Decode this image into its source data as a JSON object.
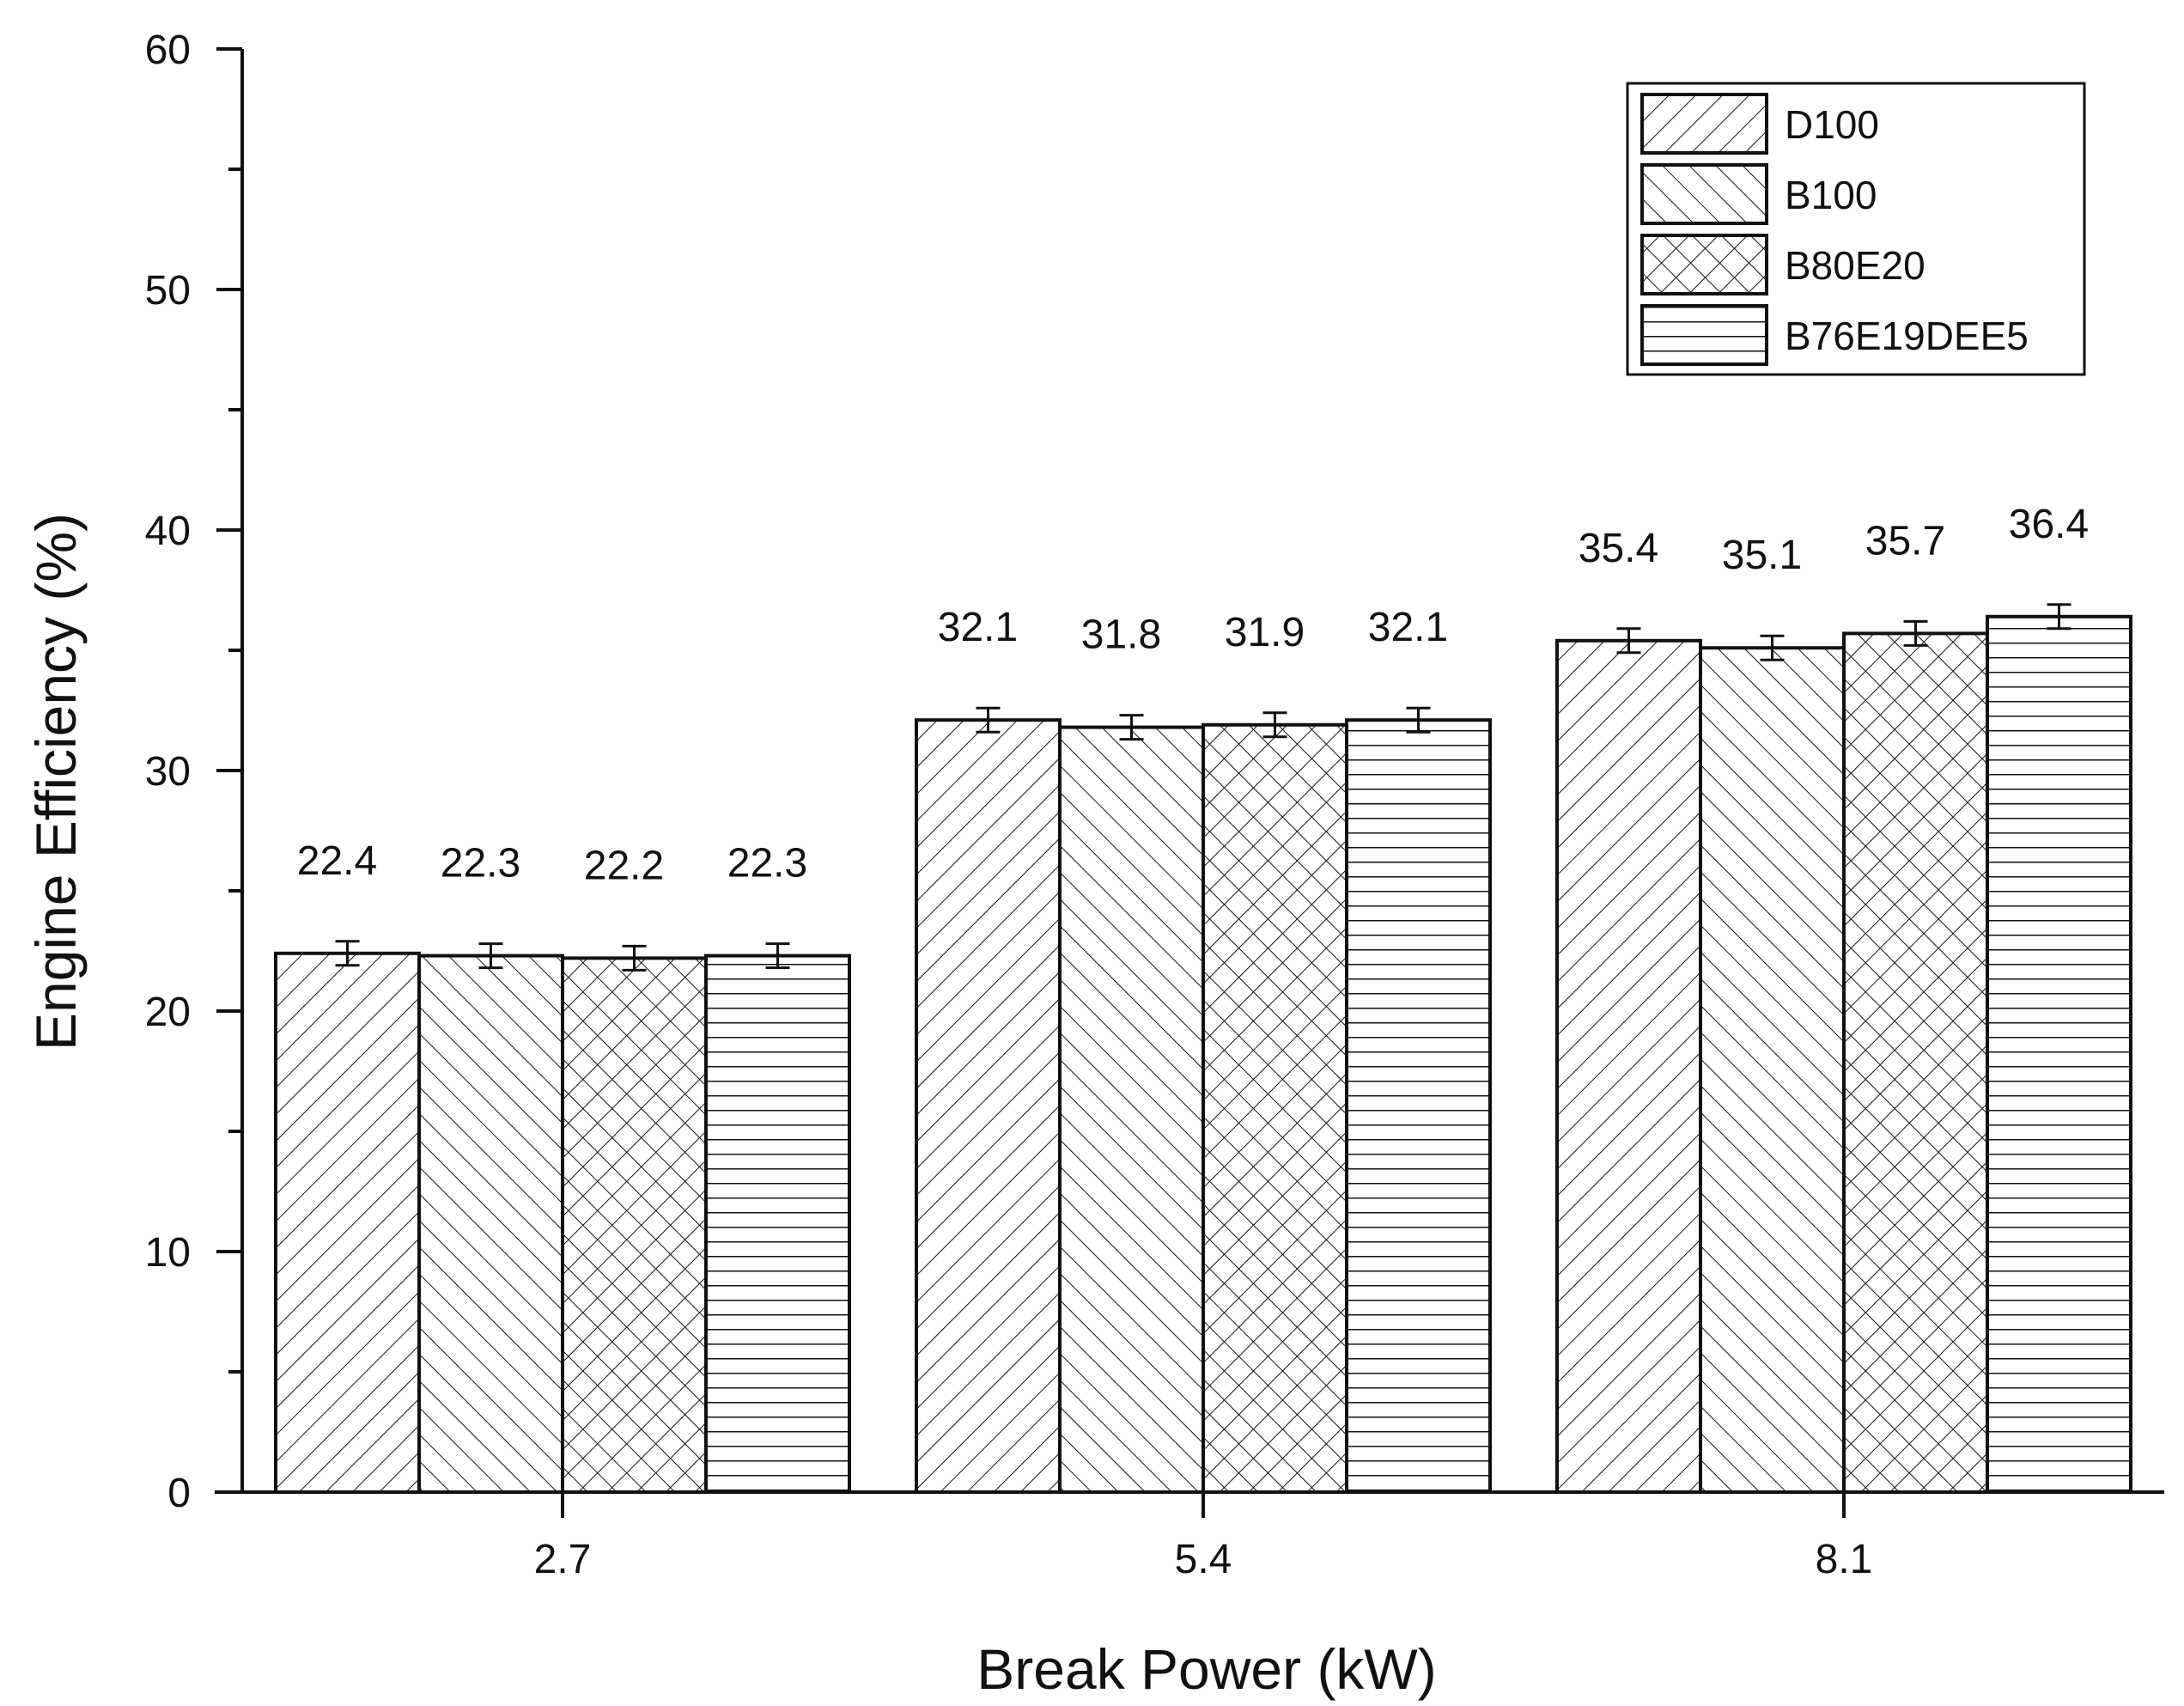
{
  "chart_data": {
    "type": "bar",
    "title": "",
    "xlabel": "Break Power (kW)",
    "ylabel": "Engine Efficiency (%)",
    "categories": [
      "2.7",
      "5.4",
      "8.1"
    ],
    "ylim": [
      0,
      60
    ],
    "yticks": [
      "0",
      "10",
      "20",
      "30",
      "40",
      "50",
      "60"
    ],
    "grid": false,
    "legend_position": "top-right",
    "error_bar": 0.5,
    "series": [
      {
        "name": "D100",
        "pattern": "diagonal-right",
        "values": [
          22.4,
          32.1,
          35.4
        ],
        "labels": [
          "22.4",
          "32.1",
          "35.4"
        ]
      },
      {
        "name": "B100",
        "pattern": "diagonal-left",
        "values": [
          22.3,
          31.8,
          35.1
        ],
        "labels": [
          "22.3",
          "31.8",
          "35.1"
        ]
      },
      {
        "name": "B80E20",
        "pattern": "crosshatch",
        "values": [
          22.2,
          31.9,
          35.7
        ],
        "labels": [
          "22.2",
          "31.9",
          "35.7"
        ]
      },
      {
        "name": "B76E19DEE5",
        "pattern": "horizontal",
        "values": [
          22.3,
          32.1,
          36.4
        ],
        "labels": [
          "22.3",
          "32.1",
          "36.4"
        ]
      }
    ],
    "colors": {
      "stroke": "#111111",
      "background": "#ffffff"
    }
  }
}
